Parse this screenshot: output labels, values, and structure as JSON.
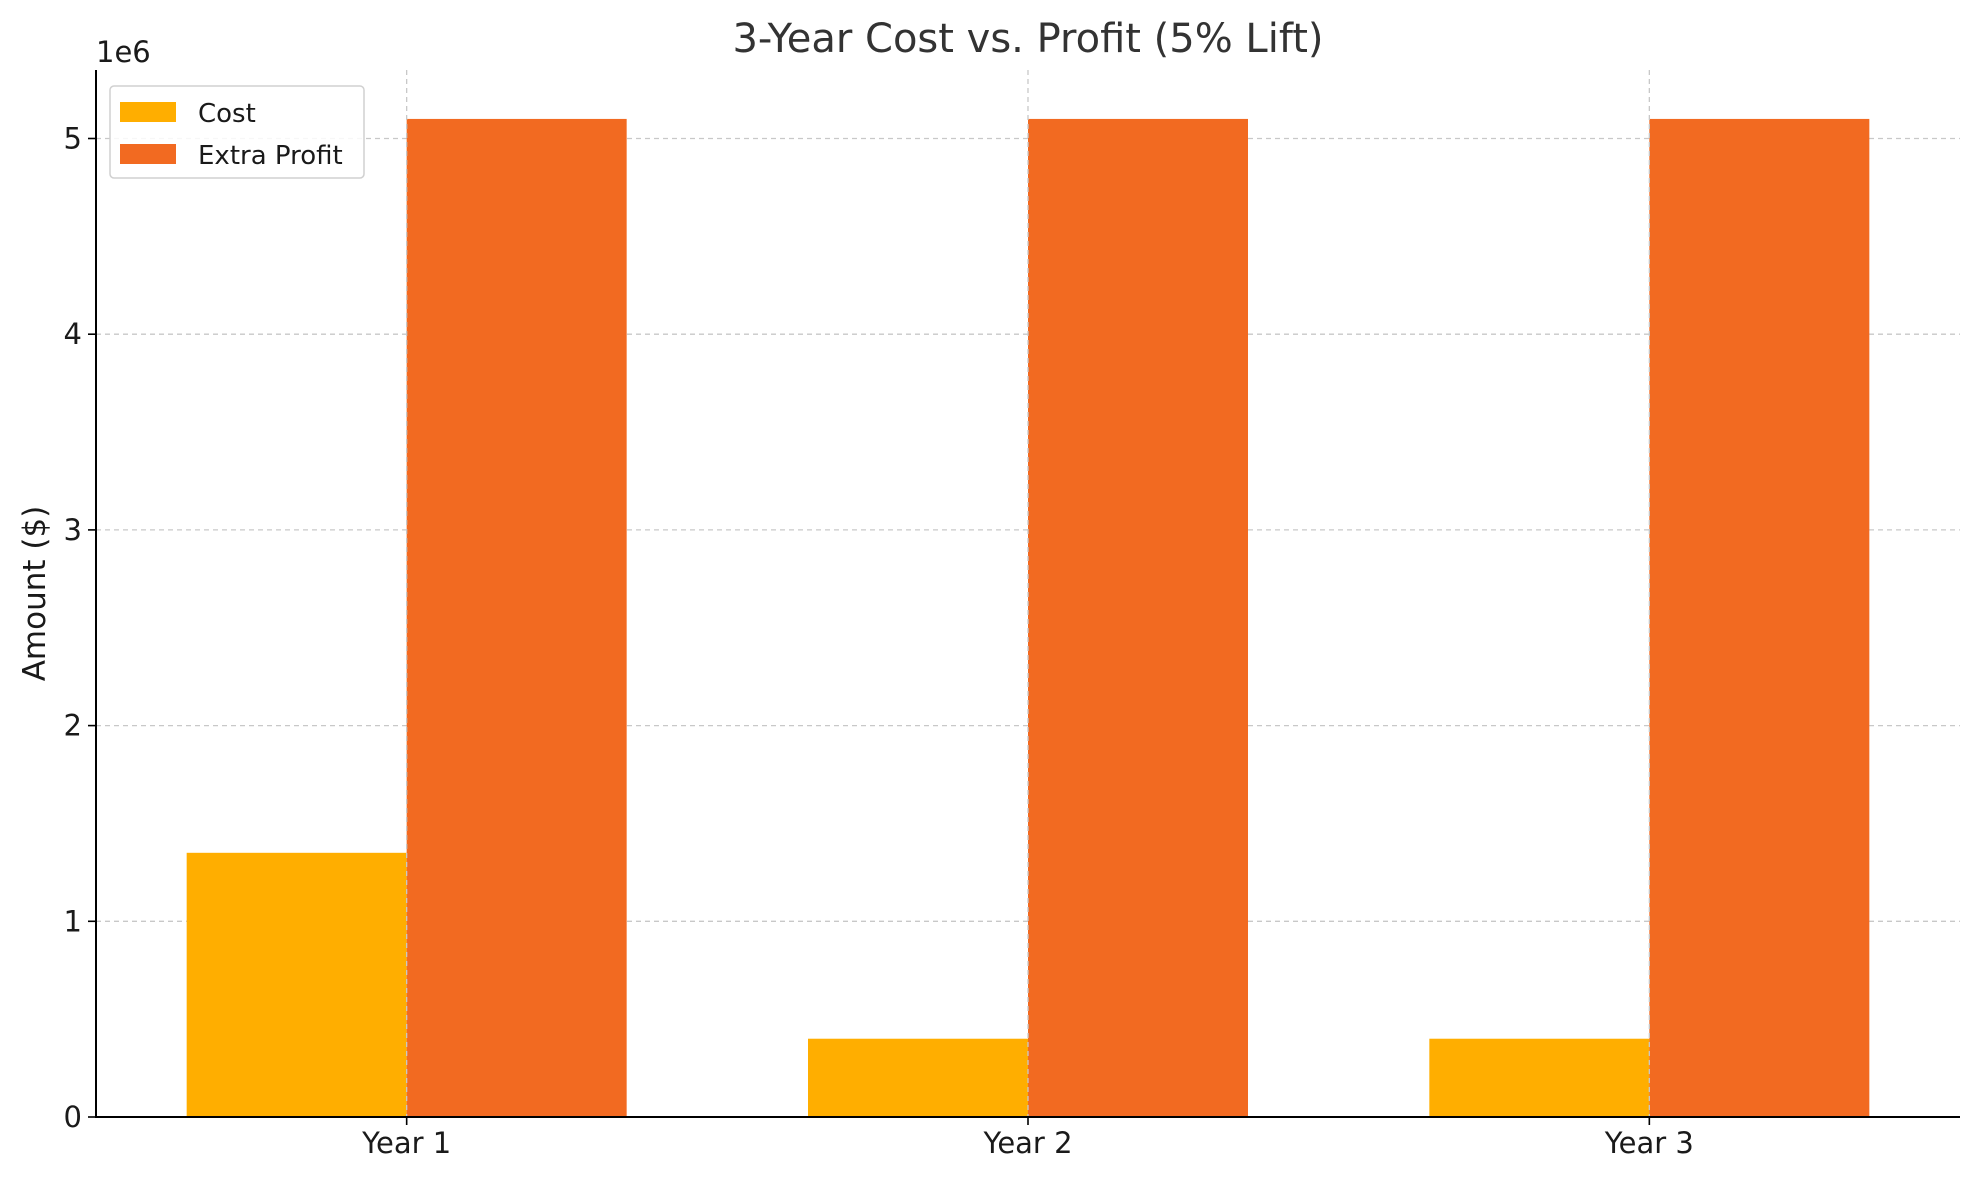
{
  "chart_data": {
    "type": "bar",
    "title": "3-Year Cost vs. Profit (5% Lift)",
    "xlabel": "",
    "ylabel": "Amount ($)",
    "y_offset_label": "1e6",
    "y_scale": 1000000,
    "categories": [
      "Year 1",
      "Year 2",
      "Year 3"
    ],
    "series": [
      {
        "name": "Cost",
        "values": [
          1350000,
          400000,
          400000
        ],
        "color": "#FFAE00"
      },
      {
        "name": "Extra Profit",
        "values": [
          5100000,
          5100000,
          5100000
        ],
        "color": "#F26A21"
      }
    ],
    "ylim": [
      0,
      5350000
    ],
    "yticks": [
      0,
      1000000,
      2000000,
      3000000,
      4000000,
      5000000
    ],
    "ytick_labels": [
      "0",
      "1",
      "2",
      "3",
      "4",
      "5"
    ],
    "grid": true,
    "legend_placement": "top-left"
  }
}
